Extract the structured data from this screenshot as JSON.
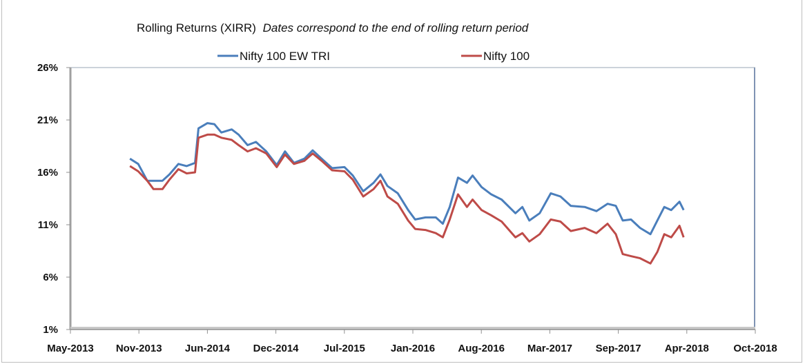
{
  "chart_data": {
    "type": "line",
    "title": "Rolling Returns (XIRR)",
    "subtitle": "Dates correspond to the end of rolling return period",
    "xlabel": "",
    "ylabel": "",
    "xlim": [
      "2013-05-01",
      "2018-10-01"
    ],
    "ylim": [
      1,
      26
    ],
    "y_unit": "%",
    "y_ticks": [
      "1%",
      "6%",
      "11%",
      "16%",
      "21%",
      "26%"
    ],
    "y_tick_values": [
      1,
      6,
      11,
      16,
      21,
      26
    ],
    "x_ticks": [
      "May-2013",
      "Nov-2013",
      "Jun-2014",
      "Dec-2014",
      "Jul-2015",
      "Jan-2016",
      "Aug-2016",
      "Mar-2017",
      "Sep-2017",
      "Apr-2018",
      "Oct-2018"
    ],
    "grid": false,
    "legend_position": "top",
    "x": [
      "2013-10-20",
      "2013-11-13",
      "2013-12-09",
      "2013-12-27",
      "2014-01-22",
      "2014-02-11",
      "2014-03-09",
      "2014-04-02",
      "2014-04-26",
      "2014-05-06",
      "2014-06-01",
      "2014-06-21",
      "2014-07-11",
      "2014-08-10",
      "2014-08-30",
      "2014-09-25",
      "2014-10-19",
      "2014-11-18",
      "2014-12-18",
      "2015-01-11",
      "2015-02-06",
      "2015-03-08",
      "2015-04-01",
      "2015-04-27",
      "2015-05-27",
      "2015-07-02",
      "2015-07-26",
      "2015-08-25",
      "2015-09-24",
      "2015-10-14",
      "2015-11-03",
      "2015-12-03",
      "2016-01-02",
      "2016-01-22",
      "2016-02-21",
      "2016-03-22",
      "2016-04-11",
      "2016-05-01",
      "2016-05-25",
      "2016-06-20",
      "2016-07-06",
      "2016-08-01",
      "2016-08-29",
      "2016-09-28",
      "2016-11-07",
      "2016-11-27",
      "2016-12-17",
      "2017-01-16",
      "2017-02-17",
      "2017-03-17",
      "2017-04-16",
      "2017-05-26",
      "2017-06-29",
      "2017-07-31",
      "2017-08-24",
      "2017-09-13",
      "2017-10-07",
      "2017-11-02",
      "2017-12-02",
      "2017-12-22",
      "2018-01-11",
      "2018-01-31",
      "2018-02-24",
      "2018-03-08"
    ],
    "series": [
      {
        "name": "Nifty 100 EW TRI",
        "color": "#4a7ebb",
        "values": [
          17.3,
          16.8,
          15.2,
          15.2,
          15.2,
          15.8,
          16.8,
          16.6,
          16.9,
          20.2,
          20.7,
          20.6,
          19.8,
          20.1,
          19.6,
          18.6,
          18.9,
          18.0,
          16.7,
          18.0,
          16.9,
          17.3,
          18.1,
          17.3,
          16.4,
          16.5,
          15.7,
          14.2,
          15.0,
          15.8,
          14.7,
          14.0,
          12.4,
          11.5,
          11.7,
          11.7,
          11.1,
          12.7,
          15.5,
          15.0,
          15.7,
          14.6,
          13.9,
          13.4,
          12.1,
          12.7,
          11.4,
          12.1,
          14.0,
          13.7,
          12.8,
          12.7,
          12.3,
          13.0,
          12.8,
          11.4,
          11.5,
          10.7,
          10.1,
          11.4,
          12.7,
          12.4,
          13.2,
          12.4
        ]
      },
      {
        "name": "Nifty 100",
        "color": "#be4b48",
        "values": [
          16.6,
          16.1,
          15.2,
          14.4,
          14.4,
          15.3,
          16.3,
          15.9,
          16.0,
          19.3,
          19.6,
          19.6,
          19.3,
          19.1,
          18.6,
          18.0,
          18.3,
          17.8,
          16.5,
          17.7,
          16.8,
          17.1,
          17.8,
          17.1,
          16.2,
          16.1,
          15.3,
          13.7,
          14.4,
          15.2,
          13.7,
          13.0,
          11.4,
          10.6,
          10.5,
          10.2,
          9.8,
          11.5,
          13.9,
          12.7,
          13.4,
          12.4,
          11.9,
          11.3,
          9.8,
          10.2,
          9.4,
          10.1,
          11.5,
          11.3,
          10.4,
          10.7,
          10.2,
          11.1,
          10.1,
          8.2,
          8.0,
          7.8,
          7.3,
          8.4,
          10.1,
          9.8,
          10.9,
          9.8
        ]
      }
    ]
  }
}
